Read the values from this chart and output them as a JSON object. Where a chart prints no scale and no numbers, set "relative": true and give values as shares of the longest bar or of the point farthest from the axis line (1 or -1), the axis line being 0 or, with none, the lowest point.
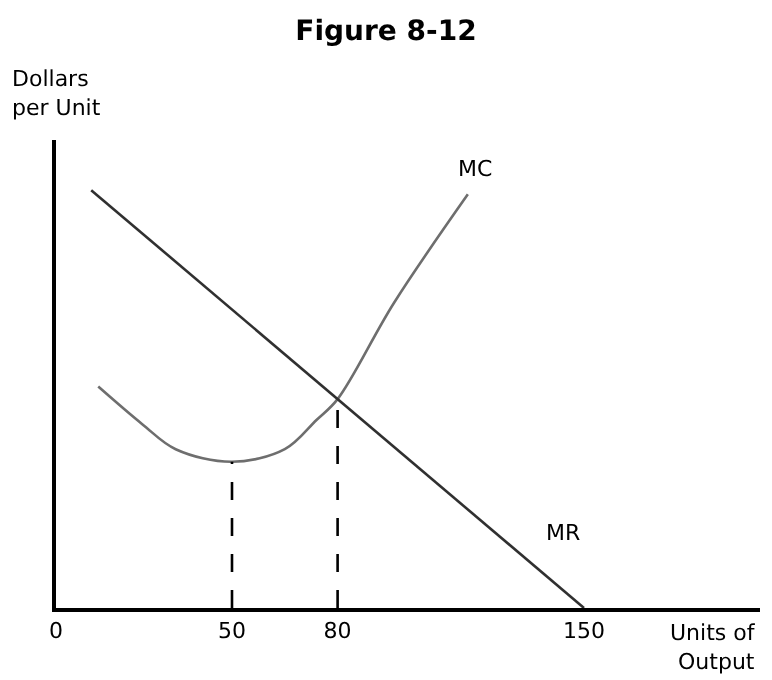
{
  "chart_data": {
    "type": "line",
    "title": "Figure 8-12",
    "xlabel": "Units of\nOutput",
    "ylabel": "Dollars\nper Unit",
    "relative": true,
    "xlim": [
      0,
      200
    ],
    "xticks": [
      0,
      50,
      80,
      150
    ],
    "legend": false,
    "marker": "none",
    "series": [
      {
        "name": "MC",
        "color": "#6e6e6e",
        "line_style": "solid",
        "x": [
          12,
          24.5,
          34,
          50,
          65,
          74,
          80,
          96,
          117
        ],
        "values": [
          0.53,
          0.44,
          0.38,
          0.35,
          0.38,
          0.45,
          0.5,
          0.73,
          0.99
        ]
      },
      {
        "name": "MR",
        "color": "#303030",
        "line_style": "solid",
        "x": [
          10,
          150
        ],
        "values": [
          1,
          0
        ]
      },
      {
        "color": "#000000",
        "line_style": "dashed",
        "x": [
          50,
          50
        ],
        "values": [
          0,
          0.35
        ]
      },
      {
        "color": "#000000",
        "line_style": "dashed",
        "x": [
          80,
          80
        ],
        "values": [
          0,
          0.5
        ]
      }
    ]
  }
}
